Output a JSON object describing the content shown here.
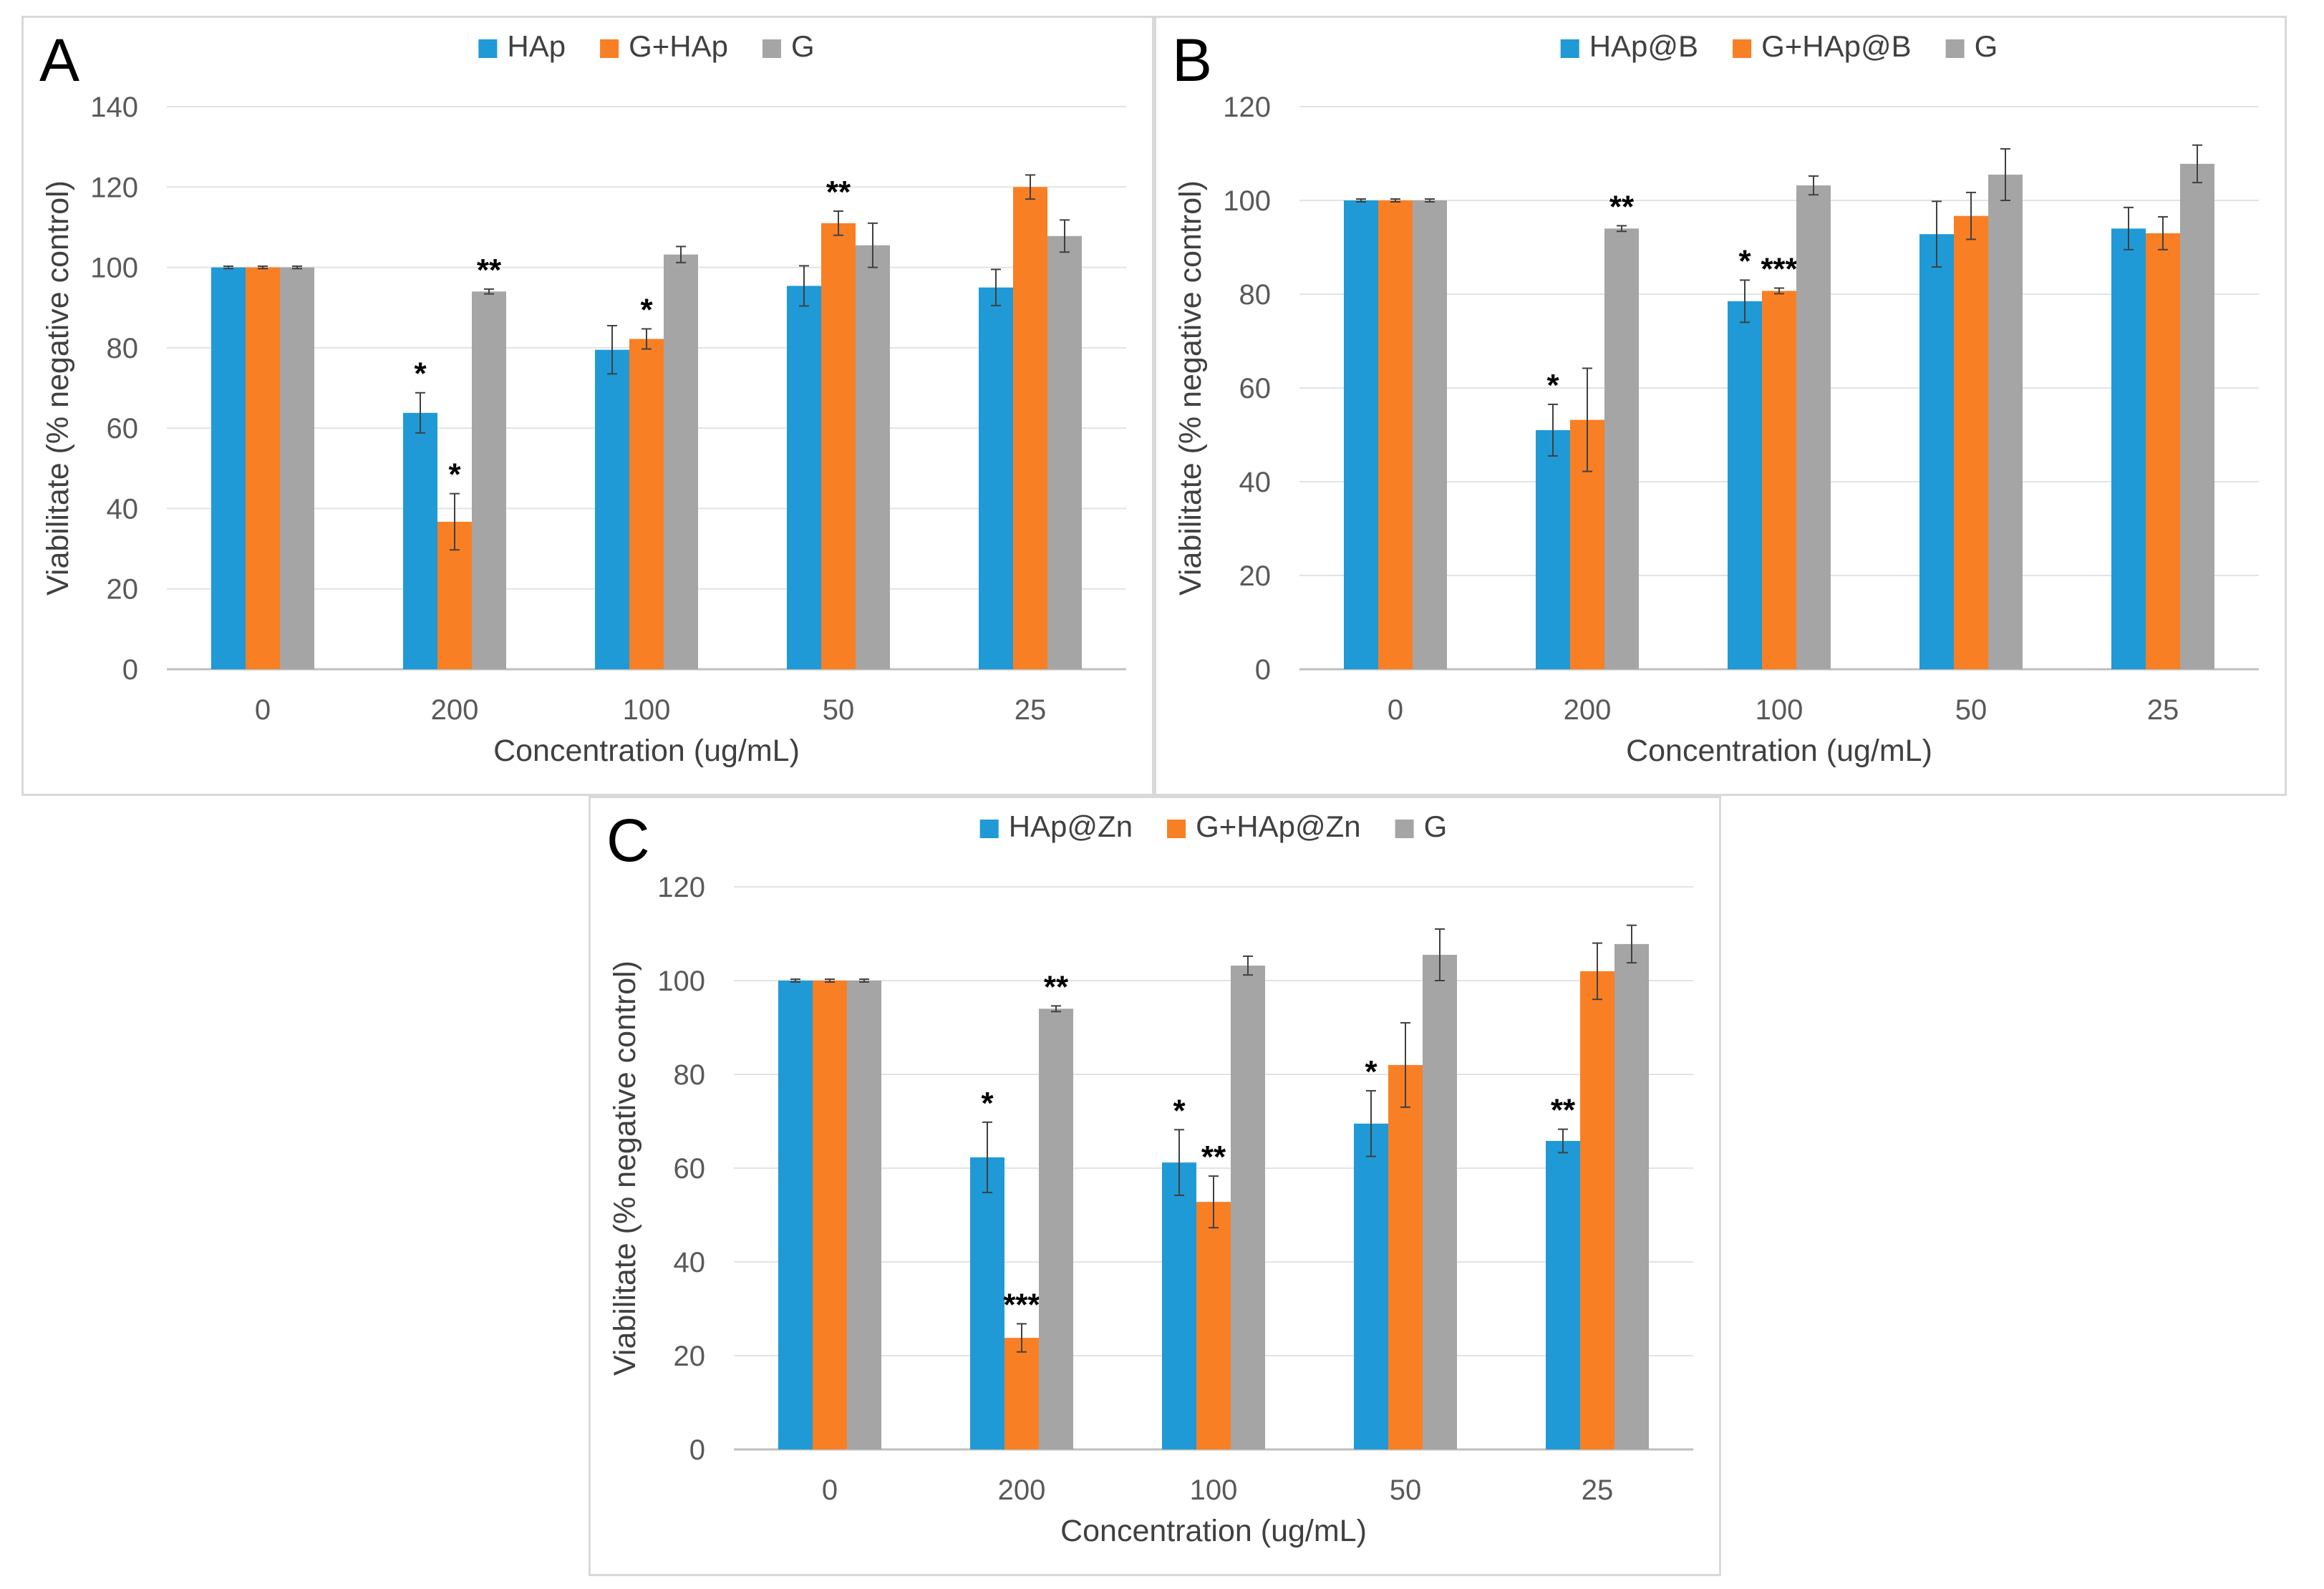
{
  "colors": {
    "series1": "#1f9ad6",
    "series2": "#f97f25",
    "series3": "#a5a5a5",
    "grid": "#e3e3e3",
    "axis": "#bfbfbf",
    "error": "#404040"
  },
  "chart_data": [
    {
      "panel": "A",
      "type": "bar",
      "categories": [
        "0",
        "200",
        "100",
        "50",
        "25"
      ],
      "series": [
        {
          "name": "HAp",
          "values": [
            100,
            63.8,
            79.5,
            95.4,
            95.0
          ],
          "errors": [
            0.3,
            5,
            6,
            5,
            4.5
          ],
          "sig": [
            "",
            "*",
            "",
            "",
            ""
          ]
        },
        {
          "name": "G+HAp",
          "values": [
            100,
            36.7,
            82.2,
            111.0,
            120.0
          ],
          "errors": [
            0.3,
            7,
            2.5,
            3,
            3
          ],
          "sig": [
            "",
            "*",
            "*",
            "**",
            ""
          ]
        },
        {
          "name": "G",
          "values": [
            100,
            94.0,
            103.2,
            105.5,
            107.8
          ],
          "errors": [
            0.3,
            0.6,
            2,
            5.5,
            4
          ],
          "sig": [
            "",
            "**",
            "",
            "",
            ""
          ]
        }
      ],
      "xlabel": "Concentration (ug/mL)",
      "ylabel": "Viabilitate (% negative control)",
      "ylim": [
        0,
        140
      ],
      "yticks": [
        "0",
        "20",
        "40",
        "60",
        "80",
        "100",
        "120",
        "140"
      ],
      "legend_position": "top"
    },
    {
      "panel": "B",
      "type": "bar",
      "categories": [
        "0",
        "200",
        "100",
        "50",
        "25"
      ],
      "series": [
        {
          "name": "HAp@B",
          "values": [
            100,
            51.0,
            78.5,
            92.8,
            94.0
          ],
          "errors": [
            0.3,
            5.5,
            4.5,
            7,
            4.5
          ],
          "sig": [
            "",
            "*",
            "*",
            "",
            ""
          ]
        },
        {
          "name": "G+HAp@B",
          "values": [
            100,
            53.2,
            80.7,
            96.7,
            93.0
          ],
          "errors": [
            0.3,
            11,
            0.6,
            5,
            3.5
          ],
          "sig": [
            "",
            "",
            "***",
            "",
            ""
          ]
        },
        {
          "name": "G",
          "values": [
            100,
            94.0,
            103.2,
            105.5,
            107.8
          ],
          "errors": [
            0.3,
            0.6,
            2,
            5.5,
            4
          ],
          "sig": [
            "",
            "**",
            "",
            "",
            ""
          ]
        }
      ],
      "xlabel": "Concentration (ug/mL)",
      "ylabel": "Viabilitate (% negative control)",
      "ylim": [
        0,
        120
      ],
      "yticks": [
        "0",
        "20",
        "40",
        "60",
        "80",
        "100",
        "120"
      ],
      "legend_position": "top"
    },
    {
      "panel": "C",
      "type": "bar",
      "categories": [
        "0",
        "200",
        "100",
        "50",
        "25"
      ],
      "series": [
        {
          "name": "HAp@Zn",
          "values": [
            100,
            62.3,
            61.2,
            69.5,
            65.8
          ],
          "errors": [
            0.3,
            7.5,
            7,
            7,
            2.5
          ],
          "sig": [
            "",
            "*",
            "*",
            "*",
            "**"
          ]
        },
        {
          "name": "G+HAp@Zn",
          "values": [
            100,
            23.8,
            52.8,
            82.0,
            102.0
          ],
          "errors": [
            0.3,
            3,
            5.5,
            9,
            6
          ],
          "sig": [
            "",
            "***",
            "**",
            "",
            ""
          ]
        },
        {
          "name": "G",
          "values": [
            100,
            94.0,
            103.2,
            105.5,
            107.8
          ],
          "errors": [
            0.3,
            0.6,
            2,
            5.5,
            4
          ],
          "sig": [
            "",
            "**",
            "",
            "",
            ""
          ]
        }
      ],
      "xlabel": "Concentration (ug/mL)",
      "ylabel": "Viabilitate (% negative control)",
      "ylim": [
        0,
        120
      ],
      "yticks": [
        "0",
        "20",
        "40",
        "60",
        "80",
        "100",
        "120"
      ],
      "legend_position": "top"
    }
  ]
}
